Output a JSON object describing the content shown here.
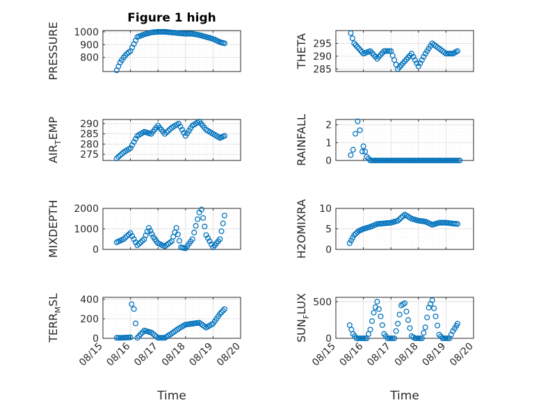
{
  "figure": {
    "title": "Figure 1 high"
  },
  "chart_data": [
    {
      "type": "scatter",
      "title": "Figure 1 high",
      "ylabel": "PRESSURE",
      "xlabel": "",
      "xlim": [
        "08/15",
        "08/20"
      ],
      "xticks": [
        "08/15",
        "08/16",
        "08/17",
        "08/18",
        "08/19",
        "08/20"
      ],
      "ylim": [
        690,
        1010
      ],
      "yticks": [
        800,
        900,
        1000
      ],
      "grid": true,
      "x": [
        "08/15 12:00",
        "08/15 15:00",
        "08/15 18:00",
        "08/15 21:00",
        "08/16 00:00",
        "08/16 06:00",
        "08/16 12:00",
        "08/16 18:00",
        "08/17 00:00",
        "08/17 06:00",
        "08/17 12:00",
        "08/17 18:00",
        "08/18 00:00",
        "08/18 06:00",
        "08/18 12:00",
        "08/18 18:00",
        "08/19 00:00",
        "08/19 06:00",
        "08/19 10:00"
      ],
      "values": [
        700,
        760,
        800,
        830,
        850,
        960,
        980,
        995,
        1000,
        1000,
        995,
        990,
        985,
        985,
        975,
        960,
        945,
        920,
        910
      ]
    },
    {
      "type": "scatter",
      "ylabel": "THETA",
      "xlim": [
        "08/15",
        "08/20"
      ],
      "ylim": [
        284,
        300
      ],
      "yticks": [
        285,
        290,
        295
      ],
      "grid": true,
      "x": [
        "08/15 13:00",
        "08/15 16:00",
        "08/15 20:00",
        "08/16 00:00",
        "08/16 06:00",
        "08/16 12:00",
        "08/16 18:00",
        "08/17 00:00",
        "08/17 06:00",
        "08/17 12:00",
        "08/17 18:00",
        "08/18 00:00",
        "08/18 06:00",
        "08/18 12:00",
        "08/18 18:00",
        "08/19 00:00",
        "08/19 06:00",
        "08/19 10:00"
      ],
      "values": [
        299,
        295,
        293,
        291,
        292,
        289,
        292,
        292,
        285,
        288,
        291,
        286,
        291,
        295,
        293,
        291,
        291,
        292
      ]
    },
    {
      "type": "scatter",
      "ylabel": "AIR_TEMP",
      "ylabel_main": "AIR",
      "ylabel_sub": "T",
      "ylabel_rest": "EMP",
      "xlim": [
        "08/15",
        "08/20"
      ],
      "ylim": [
        272,
        292
      ],
      "yticks": [
        275,
        280,
        285,
        290
      ],
      "grid": true,
      "x": [
        "08/15 12:00",
        "08/15 18:00",
        "08/16 00:00",
        "08/16 06:00",
        "08/16 12:00",
        "08/16 18:00",
        "08/17 00:00",
        "08/17 06:00",
        "08/17 12:00",
        "08/17 18:00",
        "08/18 00:00",
        "08/18 06:00",
        "08/18 12:00",
        "08/18 18:00",
        "08/19 00:00",
        "08/19 06:00",
        "08/19 10:00"
      ],
      "values": [
        273,
        276,
        278,
        284,
        286,
        285,
        289,
        285,
        288,
        290,
        284,
        289,
        291,
        287,
        285,
        283,
        284
      ]
    },
    {
      "type": "scatter",
      "ylabel": "RAINFALL",
      "xlim": [
        "08/15",
        "08/20"
      ],
      "ylim": [
        0,
        2.3
      ],
      "yticks": [
        0,
        1,
        2
      ],
      "grid": true,
      "x": [
        "08/15 13:00",
        "08/15 15:00",
        "08/15 17:00",
        "08/15 19:00",
        "08/15 21:00",
        "08/15 23:00",
        "08/16 00:00",
        "08/16 03:00",
        "08/16 06:00",
        "08/16 12:00",
        "08/17 00:00",
        "08/17 12:00",
        "08/18 00:00",
        "08/18 12:00",
        "08/19 00:00",
        "08/19 12:00"
      ],
      "values": [
        0.3,
        0.6,
        1.5,
        2.2,
        1.7,
        0.5,
        0.8,
        0.2,
        0.0,
        0.0,
        0.0,
        0.0,
        0.0,
        0.0,
        0.0,
        0.0
      ]
    },
    {
      "type": "scatter",
      "ylabel": "MIXDEPTH",
      "xlim": [
        "08/15",
        "08/20"
      ],
      "ylim": [
        0,
        2000
      ],
      "yticks": [
        0,
        1000,
        2000
      ],
      "grid": true,
      "x": [
        "08/15 12:00",
        "08/15 18:00",
        "08/16 00:00",
        "08/16 06:00",
        "08/16 12:00",
        "08/16 16:00",
        "08/16 20:00",
        "08/17 00:00",
        "08/17 06:00",
        "08/17 12:00",
        "08/17 16:00",
        "08/17 20:00",
        "08/18 00:00",
        "08/18 06:00",
        "08/18 12:00",
        "08/18 14:00",
        "08/18 18:00",
        "08/19 00:00",
        "08/19 06:00",
        "08/19 10:00"
      ],
      "values": [
        350,
        500,
        800,
        200,
        500,
        1050,
        600,
        300,
        150,
        400,
        1050,
        100,
        50,
        500,
        1800,
        1950,
        700,
        100,
        500,
        1650
      ]
    },
    {
      "type": "scatter",
      "ylabel": "H2OMIXRA",
      "xlim": [
        "08/15",
        "08/20"
      ],
      "ylim": [
        0,
        10
      ],
      "yticks": [
        0,
        5,
        10
      ],
      "grid": true,
      "x": [
        "08/15 12:00",
        "08/15 16:00",
        "08/15 20:00",
        "08/16 00:00",
        "08/16 06:00",
        "08/16 12:00",
        "08/17 00:00",
        "08/17 06:00",
        "08/17 12:00",
        "08/17 18:00",
        "08/18 00:00",
        "08/18 06:00",
        "08/18 12:00",
        "08/18 18:00",
        "08/19 00:00",
        "08/19 06:00",
        "08/19 10:00"
      ],
      "values": [
        1.5,
        3.5,
        4.5,
        5.0,
        5.5,
        6.2,
        6.5,
        7.0,
        8.5,
        7.5,
        7.0,
        6.8,
        6.0,
        6.5,
        6.5,
        6.3,
        6.2
      ]
    },
    {
      "type": "scatter",
      "ylabel": "TERR_MSL",
      "ylabel_main": "TERR",
      "ylabel_sub": "M",
      "ylabel_rest": "SL",
      "xlim": [
        "08/15",
        "08/20"
      ],
      "ylim": [
        0,
        420
      ],
      "yticks": [
        0,
        200,
        400
      ],
      "grid": true,
      "x": [
        "08/15 12:00",
        "08/15 18:00",
        "08/16 00:00",
        "08/16 01:00",
        "08/16 03:00",
        "08/16 06:00",
        "08/16 12:00",
        "08/16 18:00",
        "08/17 00:00",
        "08/17 06:00",
        "08/17 12:00",
        "08/17 18:00",
        "08/18 00:00",
        "08/18 06:00",
        "08/18 12:00",
        "08/18 18:00",
        "08/19 00:00",
        "08/19 06:00",
        "08/19 10:00"
      ],
      "values": [
        5,
        5,
        10,
        350,
        300,
        5,
        80,
        60,
        5,
        5,
        50,
        100,
        140,
        150,
        160,
        110,
        150,
        250,
        300
      ]
    },
    {
      "type": "scatter",
      "ylabel": "SUN_FLUX",
      "ylabel_main": "SUN",
      "ylabel_sub": "F",
      "ylabel_rest": "LUX",
      "xlim": [
        "08/15",
        "08/20"
      ],
      "ylim": [
        0,
        560
      ],
      "yticks": [
        0,
        500
      ],
      "grid": true,
      "x": [
        "08/15 12:00",
        "08/15 15:00",
        "08/15 18:00",
        "08/15 21:00",
        "08/16 00:00",
        "08/16 03:00",
        "08/16 06:00",
        "08/16 09:00",
        "08/16 12:00",
        "08/16 15:00",
        "08/16 18:00",
        "08/16 21:00",
        "08/17 00:00",
        "08/17 03:00",
        "08/17 06:00",
        "08/17 09:00",
        "08/17 12:00",
        "08/17 15:00",
        "08/17 18:00",
        "08/17 21:00",
        "08/18 00:00",
        "08/18 03:00",
        "08/18 06:00",
        "08/18 09:00",
        "08/18 12:00",
        "08/18 15:00",
        "08/18 18:00",
        "08/18 21:00",
        "08/19 00:00",
        "08/19 03:00",
        "08/19 06:00",
        "08/19 09:00",
        "08/19 10:00"
      ],
      "values": [
        180,
        60,
        0,
        0,
        0,
        0,
        120,
        350,
        500,
        300,
        60,
        0,
        0,
        0,
        200,
        450,
        480,
        250,
        30,
        0,
        0,
        0,
        150,
        420,
        520,
        300,
        50,
        0,
        0,
        0,
        100,
        170,
        200
      ]
    }
  ],
  "xaxis": {
    "label": "Time",
    "ticks": [
      "08/15",
      "08/16",
      "08/17",
      "08/18",
      "08/19",
      "08/20"
    ]
  },
  "colors": {
    "marker": "#0072BD",
    "axis": "#262626",
    "grid": "#dcdcdc"
  }
}
